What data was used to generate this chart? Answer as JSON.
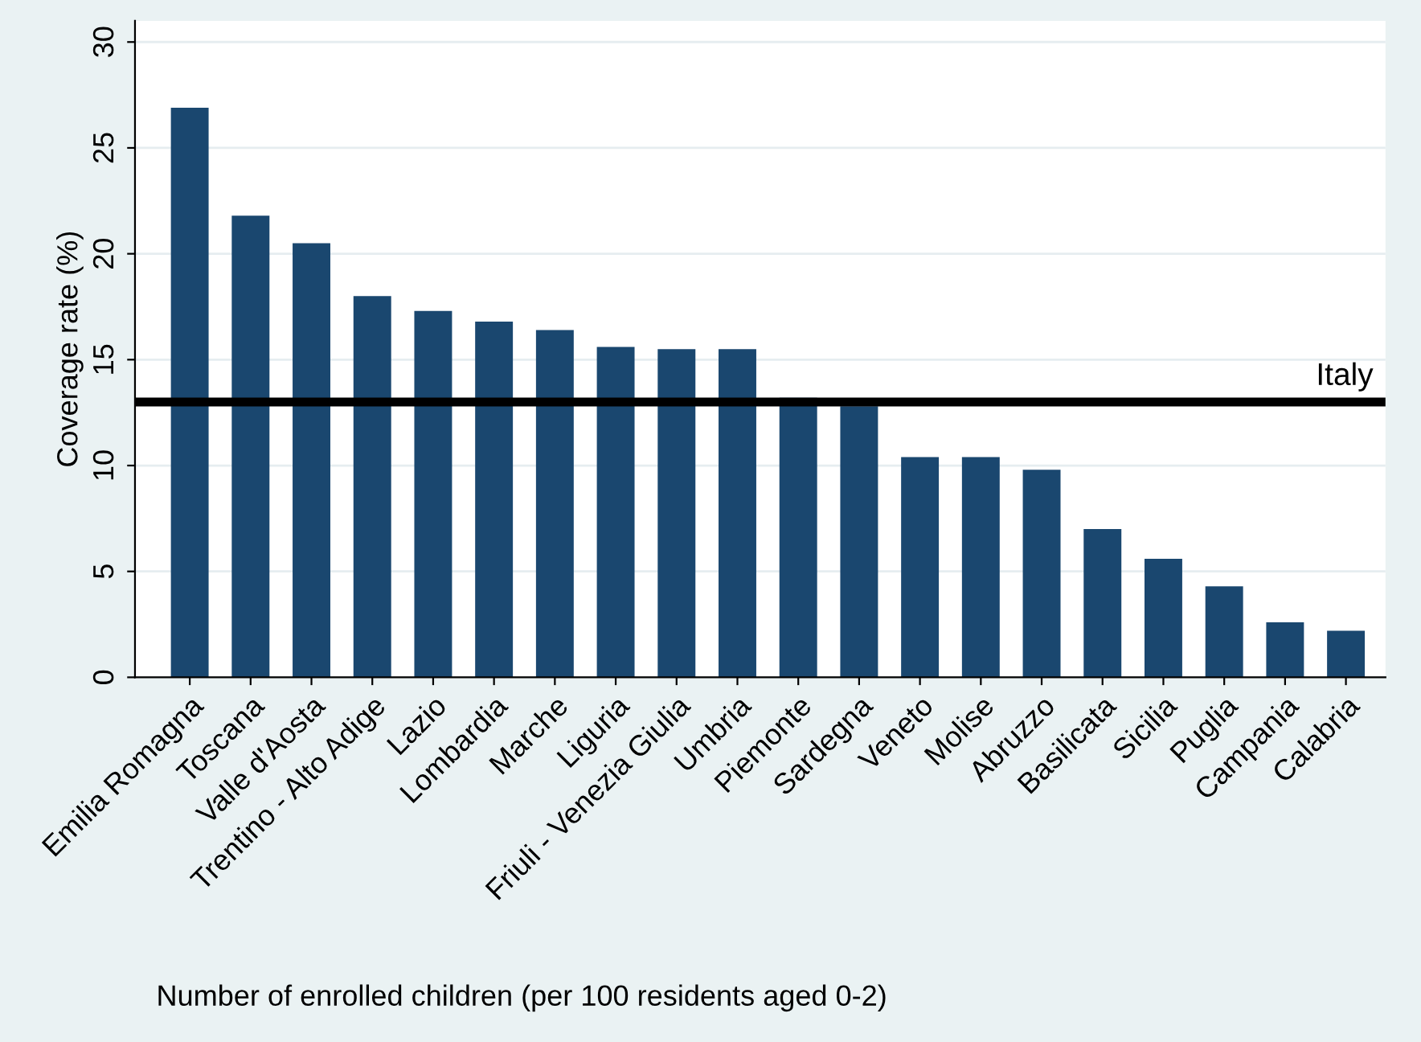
{
  "chart_data": {
    "type": "bar",
    "xlabel": "Number of enrolled children (per 100 residents aged 0-2)",
    "ylabel": "Coverage rate (%)",
    "categories": [
      "Emilia Romagna",
      "Toscana",
      "Valle d'Aosta",
      "Trentino - Alto Adige",
      "Lazio",
      "Lombardia",
      "Marche",
      "Liguria",
      "Friuli - Venezia Giulia",
      "Umbria",
      "Piemonte",
      "Sardegna",
      "Veneto",
      "Molise",
      "Abruzzo",
      "Basilicata",
      "Sicilia",
      "Puglia",
      "Campania",
      "Calabria"
    ],
    "values": [
      26.9,
      21.8,
      20.5,
      18.0,
      17.3,
      16.8,
      16.4,
      15.6,
      15.5,
      15.5,
      13.2,
      12.8,
      10.4,
      10.4,
      9.8,
      7.0,
      5.6,
      4.3,
      2.6,
      2.2
    ],
    "color": "#1a476f",
    "ylim": [
      0,
      31
    ],
    "yticks": [
      0,
      5,
      10,
      15,
      20,
      25,
      30
    ],
    "grid": "y",
    "ref_lines": [
      {
        "axis": "y",
        "value": 13.0,
        "label": "Italy",
        "color": "#000000"
      }
    ]
  }
}
